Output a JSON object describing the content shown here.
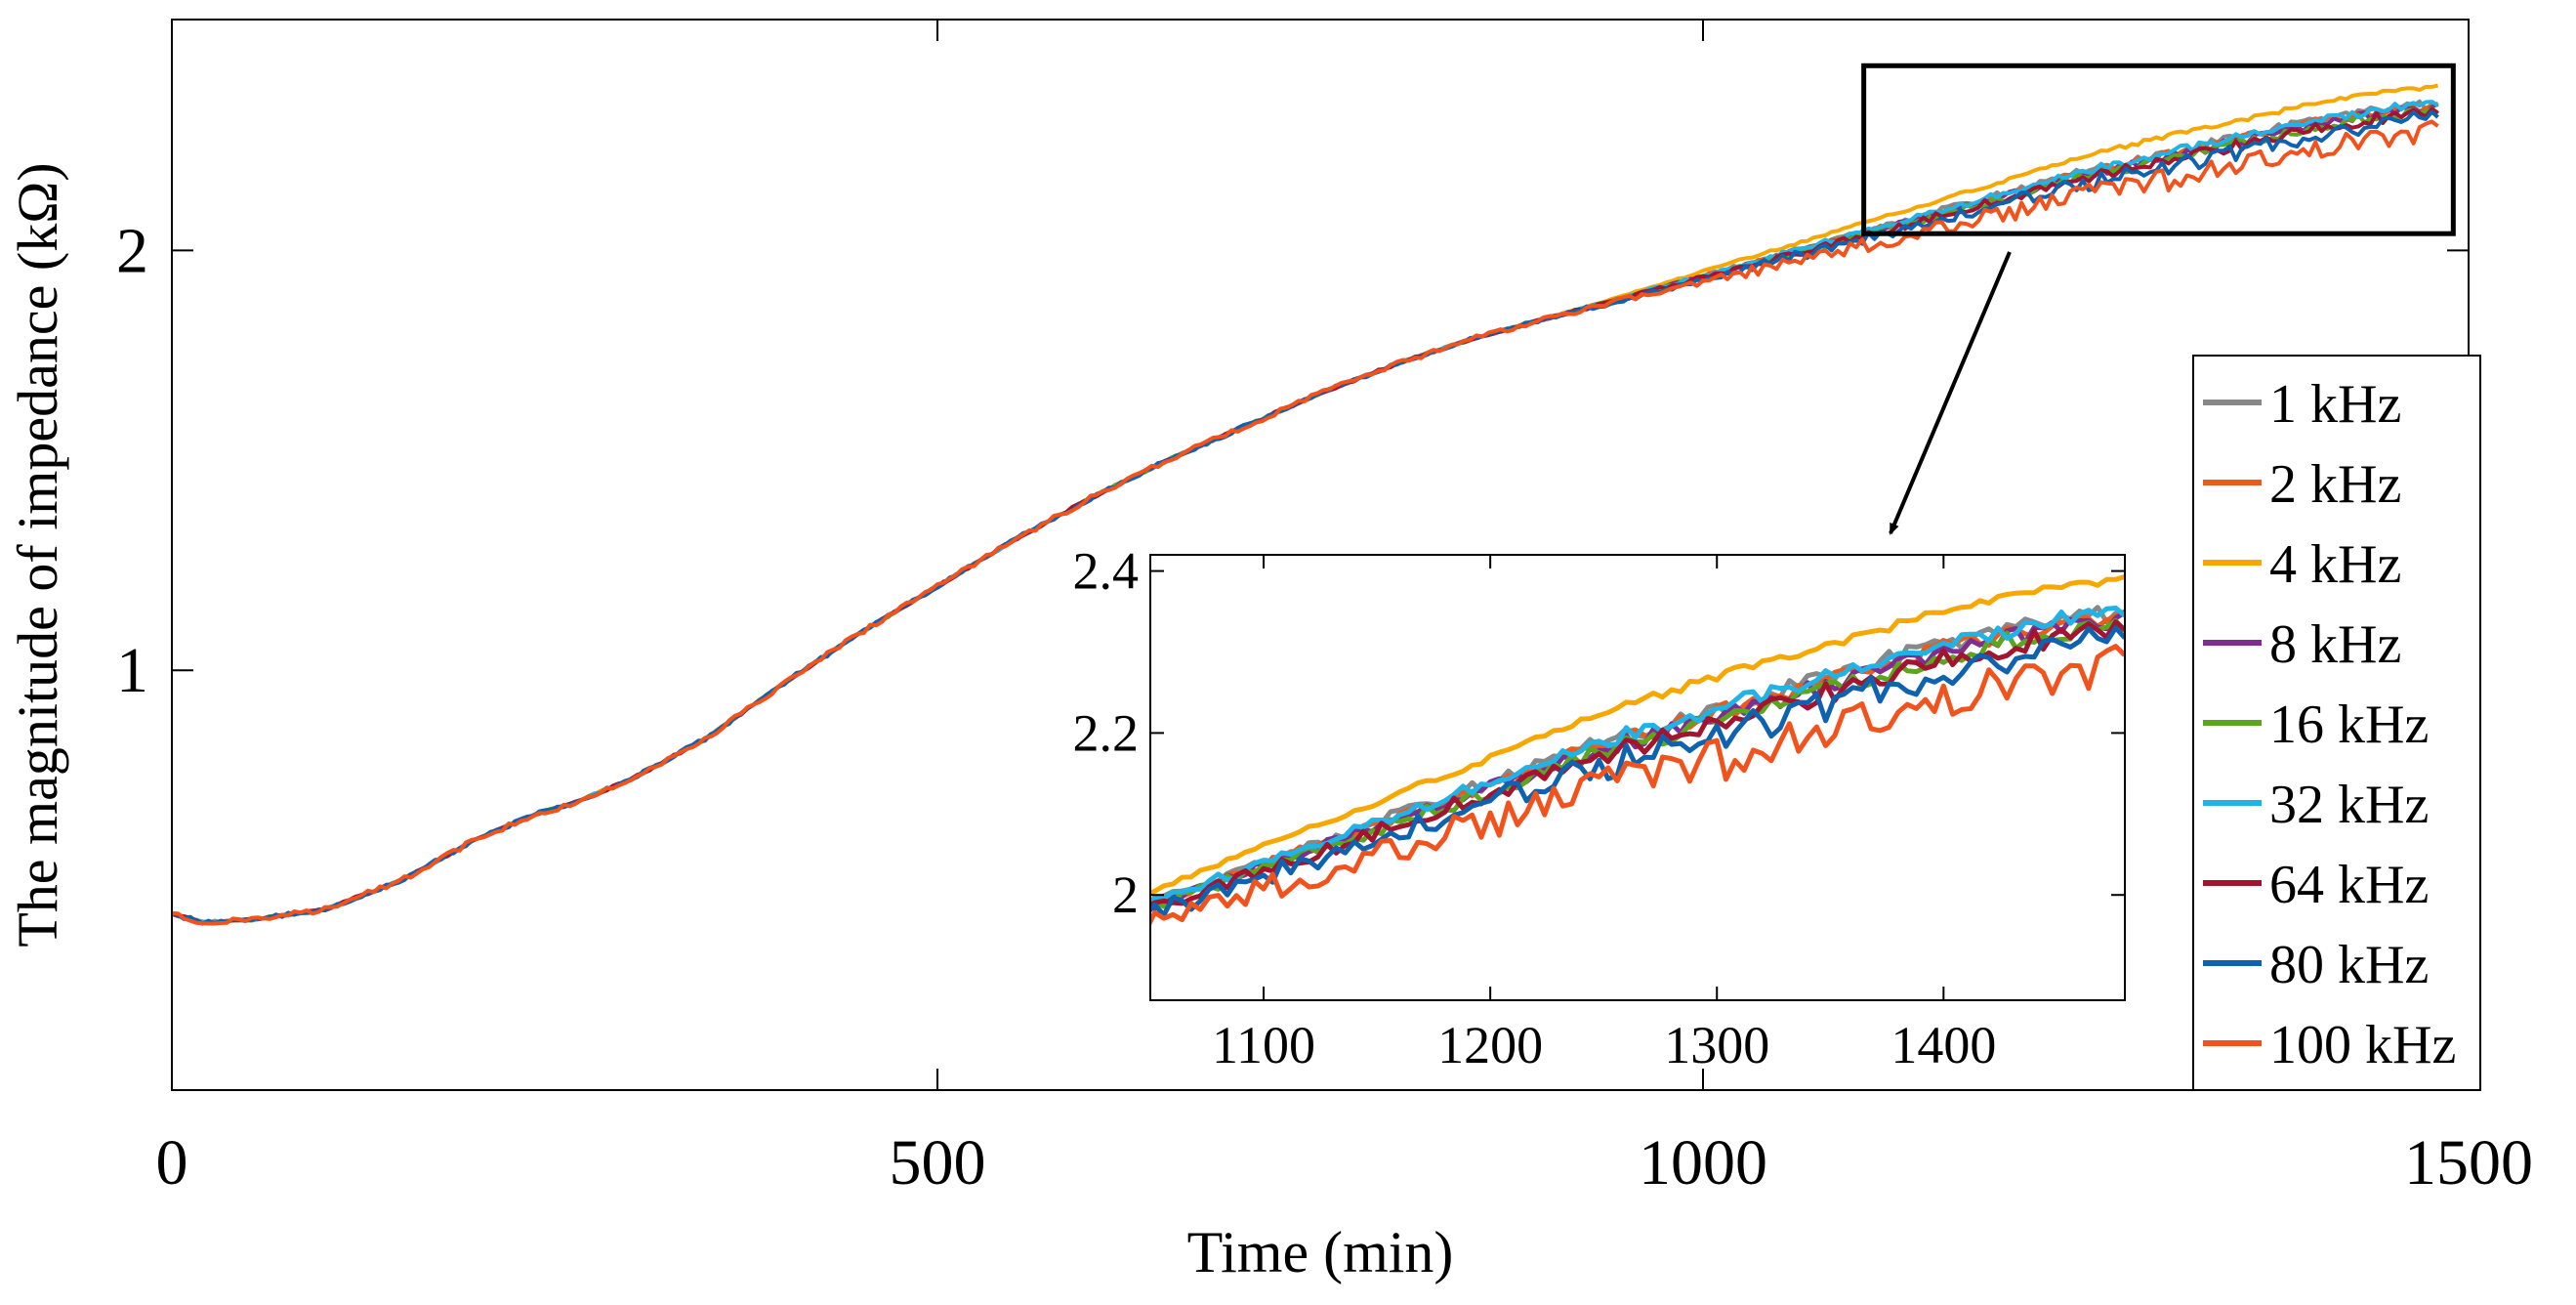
{
  "chart_data": {
    "main": {
      "type": "line",
      "xlabel": "Time (min)",
      "ylabel": "The magnitude of impedance (kΩ)",
      "xlim": [
        0,
        1500
      ],
      "ylim": [
        0,
        2.55
      ],
      "xticks": [
        0,
        500,
        1000,
        1500
      ],
      "xtick_labels": [
        "0",
        "500",
        "1000",
        "1500"
      ],
      "yticks": [
        1,
        2
      ],
      "ytick_labels": [
        "1",
        "2"
      ],
      "grid": false
    },
    "inset": {
      "type": "line",
      "xlim": [
        1050,
        1480
      ],
      "ylim": [
        1.87,
        2.42
      ],
      "xticks": [
        1100,
        1200,
        1300,
        1400
      ],
      "xtick_labels": [
        "1100",
        "1200",
        "1300",
        "1400"
      ],
      "yticks": [
        2.0,
        2.2,
        2.4
      ],
      "ytick_labels": [
        "2",
        "2.2",
        "2.4"
      ]
    },
    "zoom_box": {
      "x_range": [
        1105,
        1490
      ],
      "y_range": [
        2.04,
        2.44
      ]
    },
    "legend": {
      "placement": "right",
      "entries": [
        "1 kHz",
        "2 kHz",
        "4 kHz",
        "8 kHz",
        "16 kHz",
        "32 kHz",
        "64 kHz",
        "80 kHz",
        "100 kHz"
      ]
    },
    "series": [
      {
        "name": "1 kHz",
        "color": "#888888",
        "offset": 0.0,
        "noise": 0.008
      },
      {
        "name": "2 kHz",
        "color": "#EA5B1C",
        "offset": -0.005,
        "noise": 0.008
      },
      {
        "name": "4 kHz",
        "color": "#F7A800",
        "offset": 0.04,
        "noise": 0.004
      },
      {
        "name": "8 kHz",
        "color": "#7E2F8E",
        "offset": -0.01,
        "noise": 0.008
      },
      {
        "name": "16 kHz",
        "color": "#5BA51F",
        "offset": -0.015,
        "noise": 0.009
      },
      {
        "name": "32 kHz",
        "color": "#1FB3E6",
        "offset": 0.0,
        "noise": 0.008
      },
      {
        "name": "64 kHz",
        "color": "#A2142F",
        "offset": -0.02,
        "noise": 0.01
      },
      {
        "name": "80 kHz",
        "color": "#0E62B0",
        "offset": -0.035,
        "noise": 0.016
      },
      {
        "name": "100 kHz",
        "color": "#F2521C",
        "offset": -0.065,
        "noise": 0.02
      }
    ],
    "baseline_curve": {
      "x": [
        0,
        20,
        50,
        100,
        150,
        200,
        240,
        260,
        300,
        350,
        400,
        450,
        500,
        550,
        600,
        650,
        700,
        750,
        800,
        850,
        900,
        950,
        1000,
        1050,
        1100,
        1150,
        1200,
        1250,
        1300,
        1350,
        1400,
        1450,
        1480
      ],
      "y": [
        0.42,
        0.4,
        0.405,
        0.43,
        0.5,
        0.6,
        0.66,
        0.68,
        0.74,
        0.84,
        0.97,
        1.09,
        1.2,
        1.31,
        1.41,
        1.5,
        1.58,
        1.66,
        1.73,
        1.79,
        1.84,
        1.89,
        1.94,
        1.99,
        2.04,
        2.09,
        2.14,
        2.19,
        2.23,
        2.27,
        2.31,
        2.34,
        2.35
      ]
    }
  }
}
